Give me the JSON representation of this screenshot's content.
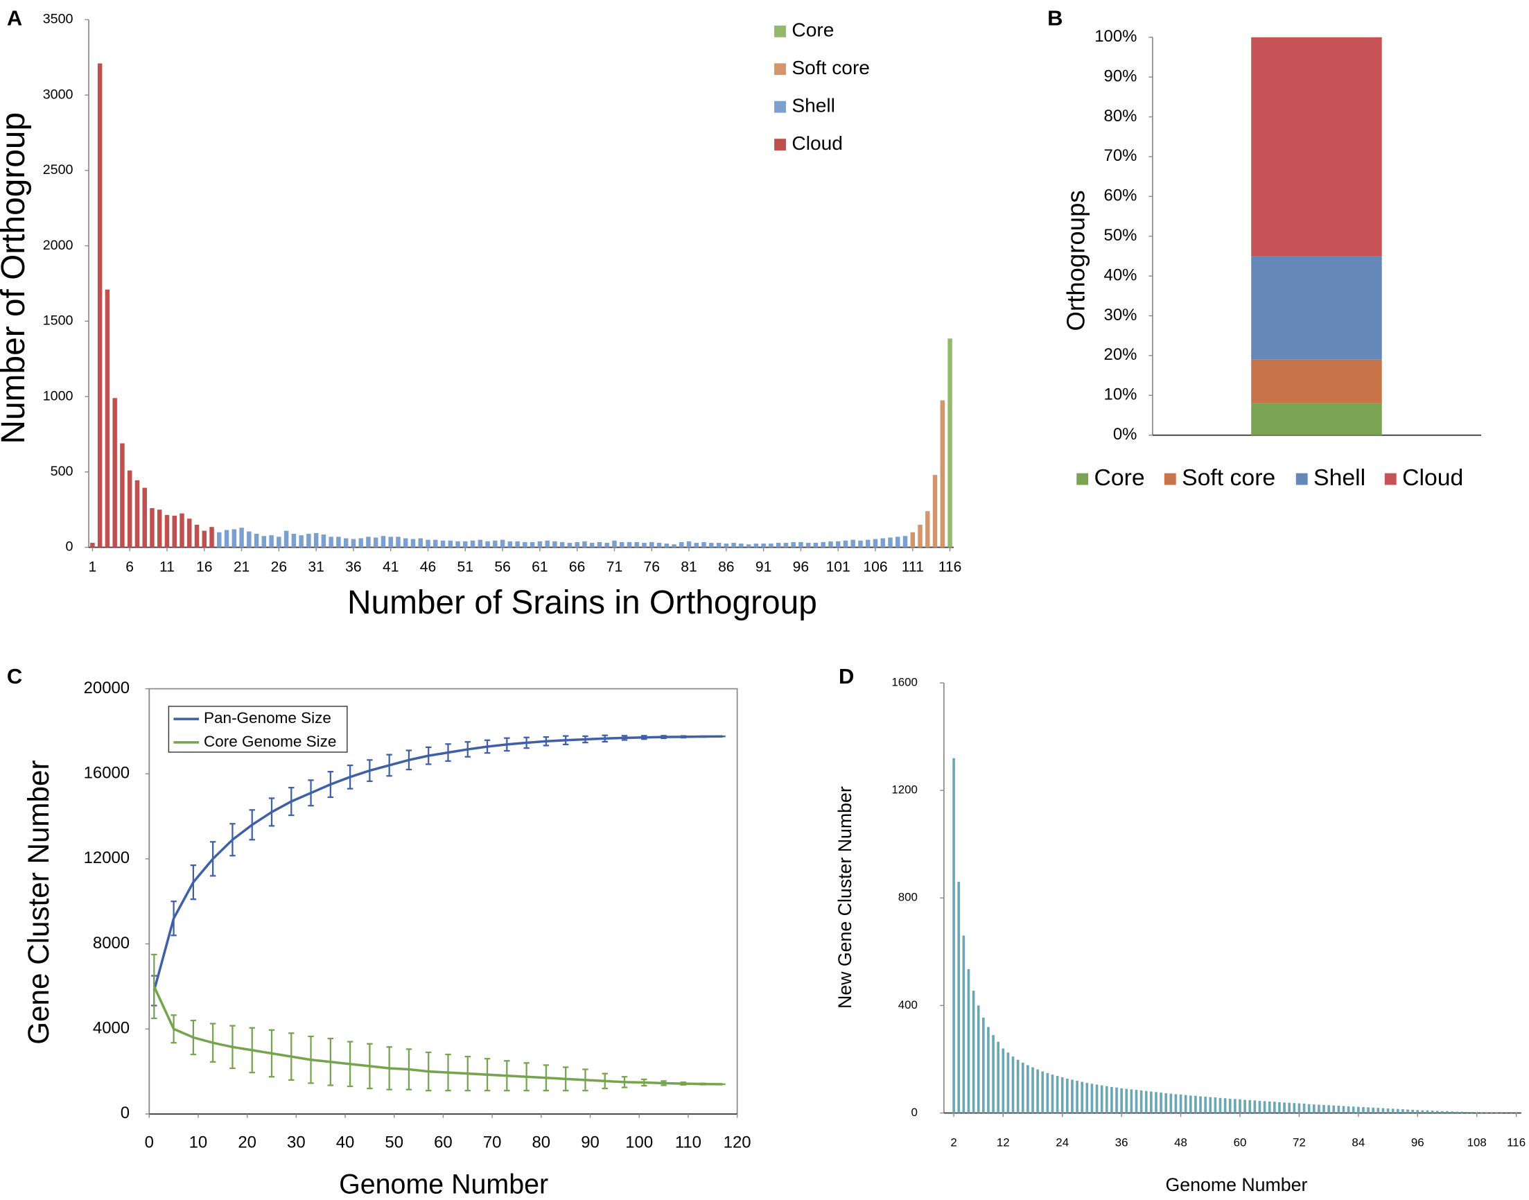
{
  "chart_data": [
    {
      "type": "bar",
      "label": "A",
      "xlabel": "Number of Srains in Orthogroup",
      "ylabel": "Number of Orthogroup",
      "xlim": [
        0.5,
        116.5
      ],
      "xticks": [
        1,
        6,
        11,
        16,
        21,
        26,
        31,
        36,
        41,
        46,
        51,
        56,
        61,
        66,
        71,
        76,
        81,
        86,
        91,
        96,
        101,
        106,
        111,
        116
      ],
      "ylim": [
        0,
        3500
      ],
      "yticks": [
        0,
        500,
        1000,
        1500,
        2000,
        2500,
        3000,
        3500
      ],
      "legend": "upper right",
      "series": [
        {
          "name": "Core",
          "color": "#93b96a",
          "x": [
            116
          ],
          "values": [
            1385
          ]
        },
        {
          "name": "Soft core",
          "color": "#d4956b",
          "x": [
            111,
            112,
            113,
            114,
            115
          ],
          "values": [
            100,
            150,
            240,
            480,
            975
          ]
        },
        {
          "name": "Shell",
          "color": "#7ba0d0",
          "x": [
            18,
            19,
            20,
            21,
            22,
            23,
            24,
            25,
            26,
            27,
            28,
            29,
            30,
            31,
            32,
            33,
            34,
            35,
            36,
            37,
            38,
            39,
            40,
            41,
            42,
            43,
            44,
            45,
            46,
            47,
            48,
            49,
            50,
            51,
            52,
            53,
            54,
            55,
            56,
            57,
            58,
            59,
            60,
            61,
            62,
            63,
            64,
            65,
            66,
            67,
            68,
            69,
            70,
            71,
            72,
            73,
            74,
            75,
            76,
            77,
            78,
            79,
            80,
            81,
            82,
            83,
            84,
            85,
            86,
            87,
            88,
            89,
            90,
            91,
            92,
            93,
            94,
            95,
            96,
            97,
            98,
            99,
            100,
            101,
            102,
            103,
            104,
            105,
            106,
            107,
            108,
            109,
            110
          ],
          "values": [
            100,
            115,
            120,
            130,
            105,
            90,
            75,
            80,
            70,
            110,
            90,
            80,
            90,
            95,
            85,
            70,
            70,
            60,
            55,
            60,
            70,
            65,
            75,
            70,
            70,
            60,
            55,
            60,
            50,
            50,
            45,
            45,
            40,
            40,
            45,
            50,
            40,
            45,
            50,
            40,
            40,
            35,
            35,
            40,
            45,
            40,
            35,
            30,
            35,
            40,
            30,
            35,
            30,
            45,
            35,
            35,
            35,
            30,
            35,
            30,
            25,
            20,
            35,
            40,
            30,
            35,
            30,
            30,
            25,
            30,
            25,
            20,
            25,
            25,
            25,
            30,
            30,
            35,
            35,
            30,
            30,
            35,
            40,
            40,
            45,
            50,
            45,
            50,
            55,
            60,
            65,
            70,
            75
          ]
        },
        {
          "name": "Cloud",
          "color": "#c0504d",
          "x": [
            1,
            2,
            3,
            4,
            5,
            6,
            7,
            8,
            9,
            10,
            11,
            12,
            13,
            14,
            15,
            16,
            17
          ],
          "values": [
            30,
            3210,
            1710,
            990,
            690,
            510,
            445,
            395,
            260,
            250,
            215,
            210,
            225,
            190,
            150,
            110,
            135
          ]
        }
      ]
    },
    {
      "type": "stacked_bar",
      "label": "B",
      "ylabel": "Orthogroups",
      "categories": [
        null
      ],
      "ylim": [
        0,
        100
      ],
      "yticks": [
        {
          "value": 0,
          "label": "0%"
        },
        {
          "value": 10,
          "label": "10%"
        },
        {
          "value": 20,
          "label": "20%"
        },
        {
          "value": 30,
          "label": "30%"
        },
        {
          "value": 40,
          "label": "40%"
        },
        {
          "value": 50,
          "label": "50%"
        },
        {
          "value": 60,
          "label": "60%"
        },
        {
          "value": 70,
          "label": "70%"
        },
        {
          "value": 80,
          "label": "80%"
        },
        {
          "value": 90,
          "label": "90%"
        },
        {
          "value": 100,
          "label": "100%"
        }
      ],
      "legend": "bottom",
      "series": [
        {
          "name": "Core",
          "color": "#7aa451",
          "values": [
            8
          ]
        },
        {
          "name": "Soft core",
          "color": "#c8744a",
          "values": [
            11
          ]
        },
        {
          "name": "Shell",
          "color": "#6588b8",
          "values": [
            26
          ]
        },
        {
          "name": "Cloud",
          "color": "#c65356",
          "values": [
            55
          ]
        }
      ]
    },
    {
      "type": "line",
      "label": "C",
      "xlabel": "Genome Number",
      "ylabel": "Gene Cluster Number",
      "xlim": [
        0,
        120
      ],
      "xticks": [
        0,
        10,
        20,
        30,
        40,
        50,
        60,
        70,
        80,
        90,
        100,
        110,
        120
      ],
      "ylim": [
        0,
        20000
      ],
      "yticks": [
        0,
        4000,
        8000,
        12000,
        16000,
        20000
      ],
      "legend": "upper left",
      "series": [
        {
          "name": "Pan-Genome Size",
          "color": "#3f5fa6",
          "x": [
            1,
            5,
            9,
            13,
            17,
            21,
            25,
            29,
            33,
            37,
            41,
            45,
            49,
            53,
            57,
            61,
            65,
            69,
            73,
            77,
            81,
            85,
            89,
            93,
            97,
            101,
            105,
            109,
            113,
            117
          ],
          "values": [
            5800,
            9200,
            10900,
            12000,
            12900,
            13600,
            14200,
            14700,
            15100,
            15500,
            15850,
            16150,
            16400,
            16650,
            16850,
            17000,
            17150,
            17280,
            17380,
            17460,
            17530,
            17580,
            17620,
            17660,
            17690,
            17710,
            17730,
            17740,
            17750,
            17760
          ],
          "errors": [
            700,
            800,
            800,
            800,
            750,
            700,
            650,
            650,
            600,
            600,
            550,
            500,
            500,
            450,
            400,
            400,
            350,
            300,
            300,
            250,
            200,
            200,
            150,
            150,
            100,
            80,
            60,
            40,
            20,
            0
          ]
        },
        {
          "name": "Core Genome Size",
          "color": "#76a34e",
          "x": [
            1,
            5,
            9,
            13,
            17,
            21,
            25,
            29,
            33,
            37,
            41,
            45,
            49,
            53,
            57,
            61,
            65,
            69,
            73,
            77,
            81,
            85,
            89,
            93,
            97,
            101,
            105,
            109,
            113,
            117
          ],
          "values": [
            6000,
            4000,
            3600,
            3350,
            3150,
            3000,
            2850,
            2700,
            2550,
            2450,
            2350,
            2250,
            2150,
            2100,
            2000,
            1950,
            1900,
            1850,
            1800,
            1750,
            1700,
            1650,
            1600,
            1550,
            1500,
            1480,
            1450,
            1430,
            1410,
            1400
          ],
          "errors": [
            1500,
            650,
            800,
            900,
            1000,
            1050,
            1100,
            1100,
            1100,
            1100,
            1050,
            1050,
            1000,
            950,
            900,
            850,
            800,
            750,
            700,
            650,
            600,
            550,
            500,
            350,
            250,
            150,
            100,
            60,
            30,
            0
          ]
        }
      ]
    },
    {
      "type": "bar",
      "label": "D",
      "xlabel": "Genome Number",
      "ylabel": "New Gene Cluster Number",
      "xlim": [
        0,
        117
      ],
      "xticks": [
        2,
        12,
        24,
        36,
        48,
        60,
        72,
        84,
        96,
        108,
        116
      ],
      "ylim": [
        0,
        1600
      ],
      "yticks": [
        0,
        400,
        800,
        1200,
        1600
      ],
      "series": [
        {
          "color": "#6ba7b3",
          "x": [
            2,
            3,
            4,
            5,
            6,
            7,
            8,
            9,
            10,
            11,
            12,
            13,
            14,
            15,
            16,
            17,
            18,
            19,
            20,
            21,
            22,
            23,
            24,
            25,
            26,
            27,
            28,
            29,
            30,
            31,
            32,
            33,
            34,
            35,
            36,
            37,
            38,
            39,
            40,
            41,
            42,
            43,
            44,
            45,
            46,
            47,
            48,
            49,
            50,
            51,
            52,
            53,
            54,
            55,
            56,
            57,
            58,
            59,
            60,
            61,
            62,
            63,
            64,
            65,
            66,
            67,
            68,
            69,
            70,
            71,
            72,
            73,
            74,
            75,
            76,
            77,
            78,
            79,
            80,
            81,
            82,
            83,
            84,
            85,
            86,
            87,
            88,
            89,
            90,
            91,
            92,
            93,
            94,
            95,
            96,
            97,
            98,
            99,
            100,
            101,
            102,
            103,
            104,
            105,
            106,
            107,
            108,
            109,
            110,
            111,
            112,
            113,
            114,
            115,
            116
          ],
          "values": [
            1320,
            860,
            660,
            535,
            455,
            400,
            355,
            320,
            290,
            265,
            240,
            225,
            210,
            198,
            187,
            178,
            170,
            162,
            155,
            149,
            143,
            138,
            133,
            128,
            124,
            120,
            116,
            112,
            109,
            106,
            103,
            100,
            97,
            95,
            92,
            90,
            88,
            86,
            84,
            82,
            80,
            78,
            76,
            74,
            72,
            70,
            69,
            67,
            65,
            64,
            62,
            61,
            59,
            58,
            56,
            55,
            53,
            52,
            51,
            49,
            48,
            47,
            45,
            44,
            43,
            42,
            40,
            39,
            38,
            37,
            36,
            35,
            33,
            32,
            31,
            30,
            29,
            28,
            27,
            26,
            25,
            24,
            23,
            22,
            21,
            20,
            19,
            18,
            17,
            16,
            15,
            14,
            13,
            12,
            11,
            10,
            10,
            9,
            8,
            7,
            7,
            6,
            5,
            5,
            4,
            4,
            3,
            3,
            2,
            2,
            2,
            1,
            1,
            1,
            1
          ]
        }
      ]
    }
  ]
}
